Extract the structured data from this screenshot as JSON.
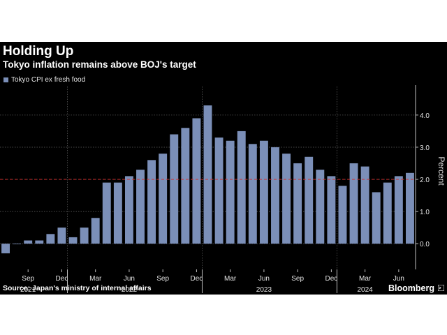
{
  "header": {
    "title": "Holding Up",
    "subtitle": "Tokyo inflation remains above BOJ's target"
  },
  "footer": {
    "source": "Source: Japan's ministry of internal affairs",
    "brand": "Bloomberg"
  },
  "colors": {
    "bar": "#7b8fb8",
    "target_line": "#d4312e",
    "background": "#000000",
    "grid": "#5a5a5a"
  },
  "chart_data": {
    "type": "bar",
    "series": [
      {
        "name": "Tokyo CPI ex fresh food",
        "x": [
          "2021-07",
          "2021-08",
          "2021-09",
          "2021-10",
          "2021-11",
          "2021-12",
          "2022-01",
          "2022-02",
          "2022-03",
          "2022-04",
          "2022-05",
          "2022-06",
          "2022-07",
          "2022-08",
          "2022-09",
          "2022-10",
          "2022-11",
          "2022-12",
          "2023-01",
          "2023-02",
          "2023-03",
          "2023-04",
          "2023-05",
          "2023-06",
          "2023-07",
          "2023-08",
          "2023-09",
          "2023-10",
          "2023-11",
          "2023-12",
          "2024-01",
          "2024-02",
          "2024-03",
          "2024-04",
          "2024-05",
          "2024-06",
          "2024-07"
        ],
        "values": [
          -0.3,
          0.0,
          0.1,
          0.1,
          0.3,
          0.5,
          0.2,
          0.5,
          0.8,
          1.9,
          1.9,
          2.1,
          2.3,
          2.6,
          2.8,
          3.4,
          3.6,
          3.9,
          4.3,
          3.3,
          3.2,
          3.5,
          3.1,
          3.2,
          3.0,
          2.8,
          2.5,
          2.7,
          2.3,
          2.1,
          1.8,
          2.5,
          2.4,
          1.6,
          1.9,
          2.1,
          2.2
        ]
      }
    ],
    "target_line": 2.0,
    "ylabel": "Percent",
    "yticks": [
      0.0,
      1.0,
      2.0,
      3.0,
      4.0
    ],
    "ytick_labels": [
      "0.0",
      "1.0",
      "2.0",
      "3.0",
      "4.0"
    ],
    "ylim": [
      -0.8,
      4.8
    ],
    "x_ticks": [
      {
        "label": "Sep",
        "at": "2021-09"
      },
      {
        "label": "Dec",
        "at": "2021-12"
      },
      {
        "label": "Mar",
        "at": "2022-03"
      },
      {
        "label": "Jun",
        "at": "2022-06"
      },
      {
        "label": "Sep",
        "at": "2022-09"
      },
      {
        "label": "Dec",
        "at": "2022-12"
      },
      {
        "label": "Mar",
        "at": "2023-03"
      },
      {
        "label": "Jun",
        "at": "2023-06"
      },
      {
        "label": "Sep",
        "at": "2023-09"
      },
      {
        "label": "Dec",
        "at": "2023-12"
      },
      {
        "label": "Mar",
        "at": "2024-03"
      },
      {
        "label": "Jun",
        "at": "2024-06"
      }
    ],
    "year_labels": [
      {
        "label": "2021",
        "at": "2021-09"
      },
      {
        "label": "2022",
        "at": "2022-06"
      },
      {
        "label": "2023",
        "at": "2023-06"
      },
      {
        "label": "2024",
        "at": "2024-03"
      }
    ],
    "grid": true,
    "legend_position": "top-left"
  }
}
